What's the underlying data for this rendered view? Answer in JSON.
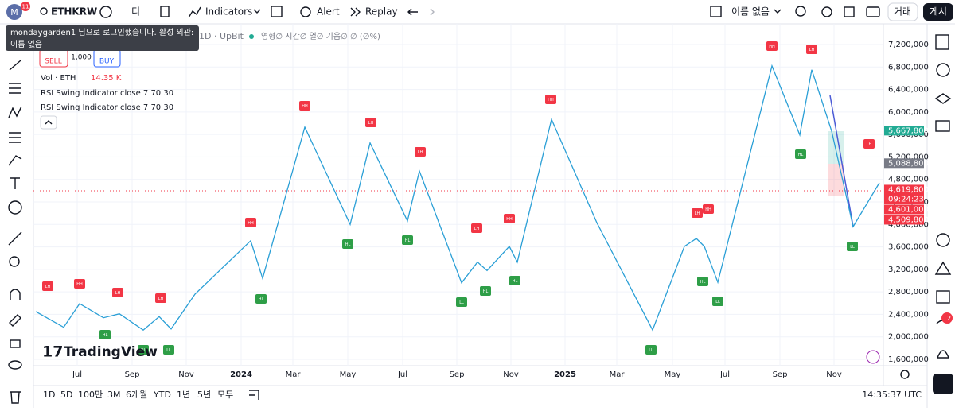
{
  "top_bar": {
    "avatar_badge": "11",
    "symbol": "ETHKRW",
    "interval": "디",
    "indicators": "Indicators",
    "alert": "Alert",
    "replay": "Replay",
    "layout_name": "이름 없음",
    "trade": "거래",
    "publish": "게시"
  },
  "tooltip": {
    "lines": [
      "mondaygarden1 님으로 로그인했습니다. 활성 외관:",
      "이름 없음"
    ]
  },
  "legend": {
    "title_suffix": "1D · UpBit",
    "ohlc": "영형∅ 시간∅ 열∅ 기음∅ ∅ (∅%)",
    "sell": "SELL",
    "quantity": "1,000",
    "buy": "BUY",
    "volume_label": "Vol · ETH",
    "volume_value": "14.35 K",
    "indicators": [
      "RSI Swing Indicator close 7 70 30",
      "RSI Swing Indicator close 7 70 30"
    ]
  },
  "price_axis": {
    "ylim": [
      1600000,
      7200000
    ],
    "ticks": [
      {
        "value": 7200000,
        "label": "7,200,000"
      },
      {
        "value": 6800000,
        "label": "6,800,000"
      },
      {
        "value": 6400000,
        "label": "6,400,000"
      },
      {
        "value": 6000000,
        "label": "6,000,000"
      },
      {
        "value": 5600000,
        "label": "5,600,000"
      },
      {
        "value": 5200000,
        "label": "5,200,000"
      },
      {
        "value": 4800000,
        "label": "4,800,000"
      },
      {
        "value": 4400000,
        "label": "4,400,000"
      },
      {
        "value": 4000000,
        "label": "4,000,000"
      },
      {
        "value": 3600000,
        "label": "3,600,000"
      },
      {
        "value": 3200000,
        "label": "3,200,000"
      },
      {
        "value": 2800000,
        "label": "2,800,000"
      },
      {
        "value": 2400000,
        "label": "2,400,000"
      },
      {
        "value": 2000000,
        "label": "2,000,000"
      },
      {
        "value": 1600000,
        "label": "1,600,000"
      }
    ],
    "badges": [
      {
        "value": 5667800,
        "label": "5,667,800",
        "color": "#22ab94"
      },
      {
        "value": 5088800,
        "label": "5,088,800",
        "color": "#787b86"
      },
      {
        "value": 4619800,
        "label": "4,619,800",
        "countdown": "09:24:23",
        "color": "#f23645"
      },
      {
        "value": 4601000,
        "label": "4,601,000",
        "color": "#f23645"
      },
      {
        "value": 4509800,
        "label": "4,509,800",
        "color": "#f23645"
      }
    ]
  },
  "time_axis": [
    "Jul",
    "Sep",
    "Nov",
    "2024",
    "Mar",
    "May",
    "Jul",
    "Sep",
    "Nov",
    "2025",
    "Mar",
    "May",
    "Jul",
    "Sep",
    "Nov"
  ],
  "zigzag": {
    "color": "#2a9fd6",
    "values": [
      2450000,
      2170000,
      2590000,
      2340000,
      2410000,
      2120000,
      2360000,
      2140000,
      2760000,
      3710000,
      3040000,
      5730000,
      4000000,
      5450000,
      4060000,
      4950000,
      2960000,
      3330000,
      3180000,
      3610000,
      3330000,
      5870000,
      4030000,
      2120000,
      3610000,
      3750000,
      3610000,
      2970000,
      6820000,
      5590000,
      6750000,
      5660000,
      3960000,
      4740000
    ]
  },
  "markers": {
    "high_color": "#f23645",
    "low_color": "#2e9e47",
    "items": [
      {
        "label": "LH",
        "kind": "high"
      },
      {
        "label": "HH",
        "kind": "high"
      },
      {
        "label": "LH",
        "kind": "high"
      },
      {
        "label": "LH",
        "kind": "high"
      },
      {
        "label": "HH",
        "kind": "high"
      },
      {
        "label": "HH",
        "kind": "high"
      },
      {
        "label": "LH",
        "kind": "high"
      },
      {
        "label": "LH",
        "kind": "high"
      },
      {
        "label": "LH",
        "kind": "high"
      },
      {
        "label": "HH",
        "kind": "high"
      },
      {
        "label": "HH",
        "kind": "high"
      },
      {
        "label": "LH",
        "kind": "high"
      },
      {
        "label": "HH",
        "kind": "high"
      },
      {
        "label": "HH",
        "kind": "high"
      },
      {
        "label": "LH",
        "kind": "high"
      },
      {
        "label": "LH",
        "kind": "high"
      },
      {
        "label": "HL",
        "kind": "low"
      },
      {
        "label": "HL",
        "kind": "low"
      },
      {
        "label": "LL",
        "kind": "low"
      },
      {
        "label": "HL",
        "kind": "low"
      },
      {
        "label": "HL",
        "kind": "low"
      },
      {
        "label": "HL",
        "kind": "low"
      },
      {
        "label": "LL",
        "kind": "low"
      },
      {
        "label": "HL",
        "kind": "low"
      },
      {
        "label": "HL",
        "kind": "low"
      },
      {
        "label": "LL",
        "kind": "low"
      },
      {
        "label": "HL",
        "kind": "low"
      },
      {
        "label": "LL",
        "kind": "low"
      },
      {
        "label": "HL",
        "kind": "low"
      },
      {
        "label": "LL",
        "kind": "low"
      }
    ]
  },
  "watermark": "TradingView",
  "bottom_bar": {
    "ranges": [
      "1D",
      "5D",
      "100만",
      "3M",
      "6개월",
      "YTD",
      "1년",
      "5년",
      "모두"
    ],
    "clock": "14:35:37 UTC"
  },
  "sidebar_badge": "12"
}
